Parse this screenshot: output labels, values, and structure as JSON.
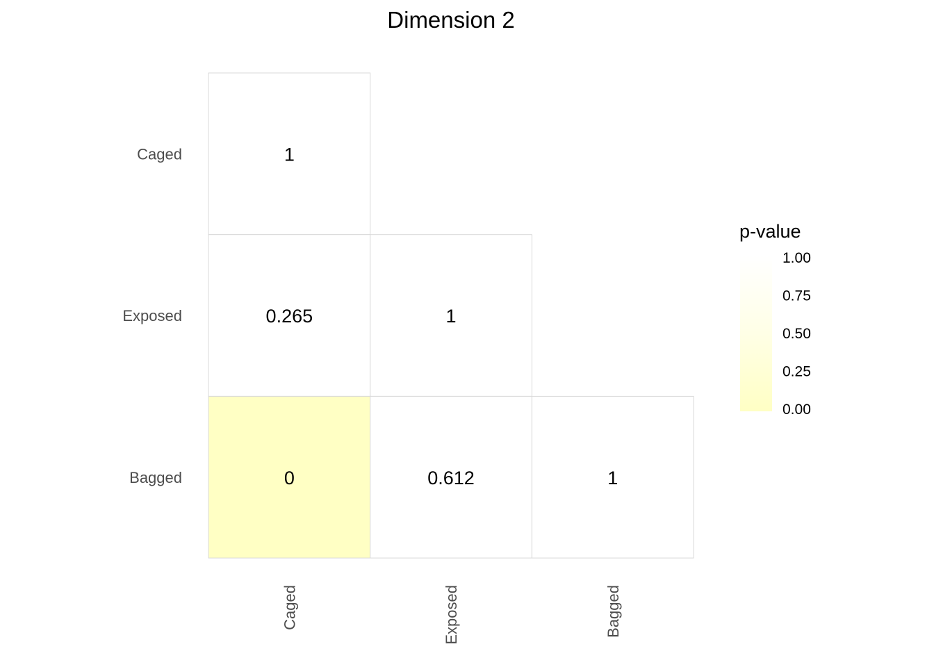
{
  "chart_data": {
    "type": "heatmap",
    "title": "Dimension 2",
    "x_categories": [
      "Caged",
      "Exposed",
      "Bagged"
    ],
    "y_categories": [
      "Caged",
      "Exposed",
      "Bagged"
    ],
    "cells": [
      {
        "x": "Caged",
        "y": "Caged",
        "value": 1,
        "label": "1"
      },
      {
        "x": "Caged",
        "y": "Exposed",
        "value": 0.265,
        "label": "0.265"
      },
      {
        "x": "Exposed",
        "y": "Exposed",
        "value": 1,
        "label": "1"
      },
      {
        "x": "Caged",
        "y": "Bagged",
        "value": 0,
        "label": "0"
      },
      {
        "x": "Exposed",
        "y": "Bagged",
        "value": 0.612,
        "label": "0.612"
      },
      {
        "x": "Bagged",
        "y": "Bagged",
        "value": 1,
        "label": "1"
      }
    ],
    "color_scale": {
      "low": "#ffffc4",
      "high": "#ffffff",
      "threshold": 0.05
    },
    "legend": {
      "title": "p-value",
      "position": "right",
      "ticks": [
        "1.00",
        "0.75",
        "0.50",
        "0.25",
        "0.00"
      ],
      "tick_values": [
        1.0,
        0.75,
        0.5,
        0.25,
        0.0
      ]
    }
  }
}
